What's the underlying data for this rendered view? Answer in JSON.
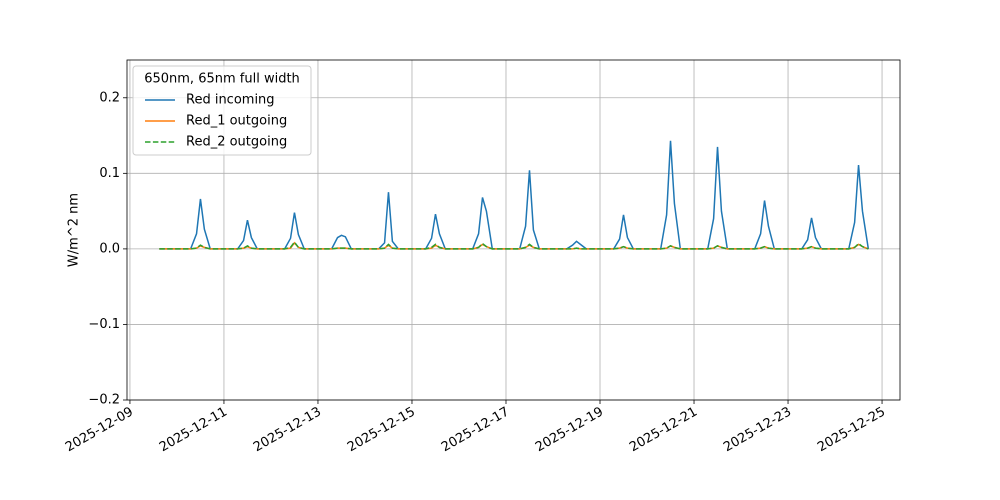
{
  "chart_data": {
    "type": "line",
    "y_label": "W/m^2 nm",
    "legend_title": "650nm, 65nm full width",
    "legend_position": "upper left",
    "grid": true,
    "x": [
      "2025-12-09T15:00",
      "2025-12-10T07:00",
      "2025-12-10T10:00",
      "2025-12-10T12:00",
      "2025-12-10T14:00",
      "2025-12-10T17:00",
      "2025-12-11T07:00",
      "2025-12-11T10:00",
      "2025-12-11T12:00",
      "2025-12-11T14:00",
      "2025-12-11T17:00",
      "2025-12-12T07:00",
      "2025-12-12T10:00",
      "2025-12-12T12:00",
      "2025-12-12T14:00",
      "2025-12-12T17:00",
      "2025-12-13T07:00",
      "2025-12-13T10:00",
      "2025-12-13T12:00",
      "2025-12-13T14:00",
      "2025-12-13T17:00",
      "2025-12-14T07:00",
      "2025-12-14T10:00",
      "2025-12-14T12:00",
      "2025-12-14T14:00",
      "2025-12-14T17:00",
      "2025-12-15T07:00",
      "2025-12-15T10:00",
      "2025-12-15T12:00",
      "2025-12-15T14:00",
      "2025-12-15T17:00",
      "2025-12-16T07:00",
      "2025-12-16T10:00",
      "2025-12-16T12:00",
      "2025-12-16T14:00",
      "2025-12-16T17:00",
      "2025-12-17T07:00",
      "2025-12-17T10:00",
      "2025-12-17T12:00",
      "2025-12-17T14:00",
      "2025-12-17T17:00",
      "2025-12-18T07:00",
      "2025-12-18T10:00",
      "2025-12-18T12:00",
      "2025-12-18T14:00",
      "2025-12-18T17:00",
      "2025-12-19T07:00",
      "2025-12-19T10:00",
      "2025-12-19T12:00",
      "2025-12-19T14:00",
      "2025-12-19T17:00",
      "2025-12-20T07:00",
      "2025-12-20T10:00",
      "2025-12-20T12:00",
      "2025-12-20T14:00",
      "2025-12-20T17:00",
      "2025-12-21T07:00",
      "2025-12-21T10:00",
      "2025-12-21T12:00",
      "2025-12-21T14:00",
      "2025-12-21T17:00",
      "2025-12-22T07:00",
      "2025-12-22T10:00",
      "2025-12-22T12:00",
      "2025-12-22T14:00",
      "2025-12-22T17:00",
      "2025-12-23T07:00",
      "2025-12-23T10:00",
      "2025-12-23T12:00",
      "2025-12-23T14:00",
      "2025-12-23T17:00",
      "2025-12-24T07:00",
      "2025-12-24T10:00",
      "2025-12-24T12:00",
      "2025-12-24T14:00",
      "2025-12-24T17:00"
    ],
    "series": [
      {
        "name": "Red incoming",
        "color": "#1f77b4",
        "dash": false,
        "values": [
          0,
          0,
          0.02,
          0.066,
          0.026,
          0,
          0,
          0.011,
          0.038,
          0.015,
          0,
          0,
          0.014,
          0.048,
          0.019,
          0,
          0,
          0.015,
          0.018,
          0.016,
          0,
          0,
          0.008,
          0.075,
          0.01,
          0,
          0,
          0.014,
          0.046,
          0.02,
          0,
          0,
          0.02,
          0.068,
          0.05,
          0,
          0,
          0.03,
          0.104,
          0.025,
          0,
          0,
          0.005,
          0.01,
          0.006,
          0,
          0,
          0.013,
          0.045,
          0.015,
          0,
          0,
          0.045,
          0.143,
          0.06,
          0,
          0,
          0.04,
          0.135,
          0.05,
          0,
          0,
          0.02,
          0.064,
          0.03,
          0,
          0,
          0.012,
          0.041,
          0.015,
          0,
          0,
          0.035,
          0.111,
          0.05,
          0
        ]
      },
      {
        "name": "Red_1 outgoing",
        "color": "#ff7f0e",
        "dash": false,
        "values": [
          0,
          0,
          0.001,
          0.004,
          0.002,
          0,
          0,
          0.001,
          0.003,
          0.001,
          0,
          0,
          0.001,
          0.008,
          0.002,
          0,
          0,
          0.001,
          0.001,
          0.001,
          0,
          0,
          0.001,
          0.005,
          0.001,
          0,
          0,
          0.001,
          0.005,
          0.002,
          0,
          0,
          0.002,
          0.006,
          0.003,
          0,
          0,
          0.002,
          0.005,
          0.002,
          0,
          0,
          0,
          0.001,
          0,
          0,
          0,
          0.001,
          0.003,
          0.001,
          0,
          0,
          0.001,
          0.004,
          0.002,
          0,
          0,
          0.001,
          0.004,
          0.002,
          0,
          0,
          0.001,
          0.003,
          0.001,
          0,
          0,
          0.001,
          0.003,
          0.001,
          0,
          0,
          0.002,
          0.006,
          0.003,
          0
        ]
      },
      {
        "name": "Red_2 outgoing",
        "color": "#2ca02c",
        "dash": true,
        "values": [
          0,
          0,
          0.001,
          0.005,
          0.002,
          0,
          0,
          0.001,
          0.004,
          0.001,
          0,
          0,
          0.002,
          0.009,
          0.002,
          0,
          0,
          0.001,
          0.001,
          0.001,
          0,
          0,
          0.001,
          0.006,
          0.001,
          0,
          0,
          0.002,
          0.006,
          0.002,
          0,
          0,
          0.002,
          0.007,
          0.003,
          0,
          0,
          0.002,
          0.006,
          0.002,
          0,
          0,
          0,
          0.001,
          0,
          0,
          0,
          0.001,
          0.003,
          0.001,
          0,
          0,
          0.001,
          0.004,
          0.002,
          0,
          0,
          0.001,
          0.004,
          0.002,
          0,
          0,
          0.001,
          0.003,
          0.001,
          0,
          0,
          0.001,
          0.003,
          0.001,
          0,
          0,
          0.002,
          0.007,
          0.003,
          0
        ]
      }
    ],
    "xlim": [
      "2025-12-08T22:30",
      "2025-12-25T09:10"
    ],
    "xticks": [
      "2025-12-09",
      "2025-12-11",
      "2025-12-13",
      "2025-12-15",
      "2025-12-17",
      "2025-12-19",
      "2025-12-21",
      "2025-12-23",
      "2025-12-25"
    ],
    "ylim": [
      -0.2,
      0.25
    ],
    "yticks": [
      {
        "value": -0.2,
        "label": "−0.2"
      },
      {
        "value": -0.1,
        "label": "−0.1"
      },
      {
        "value": 0,
        "label": "0.0"
      },
      0.1,
      0.2
    ]
  }
}
